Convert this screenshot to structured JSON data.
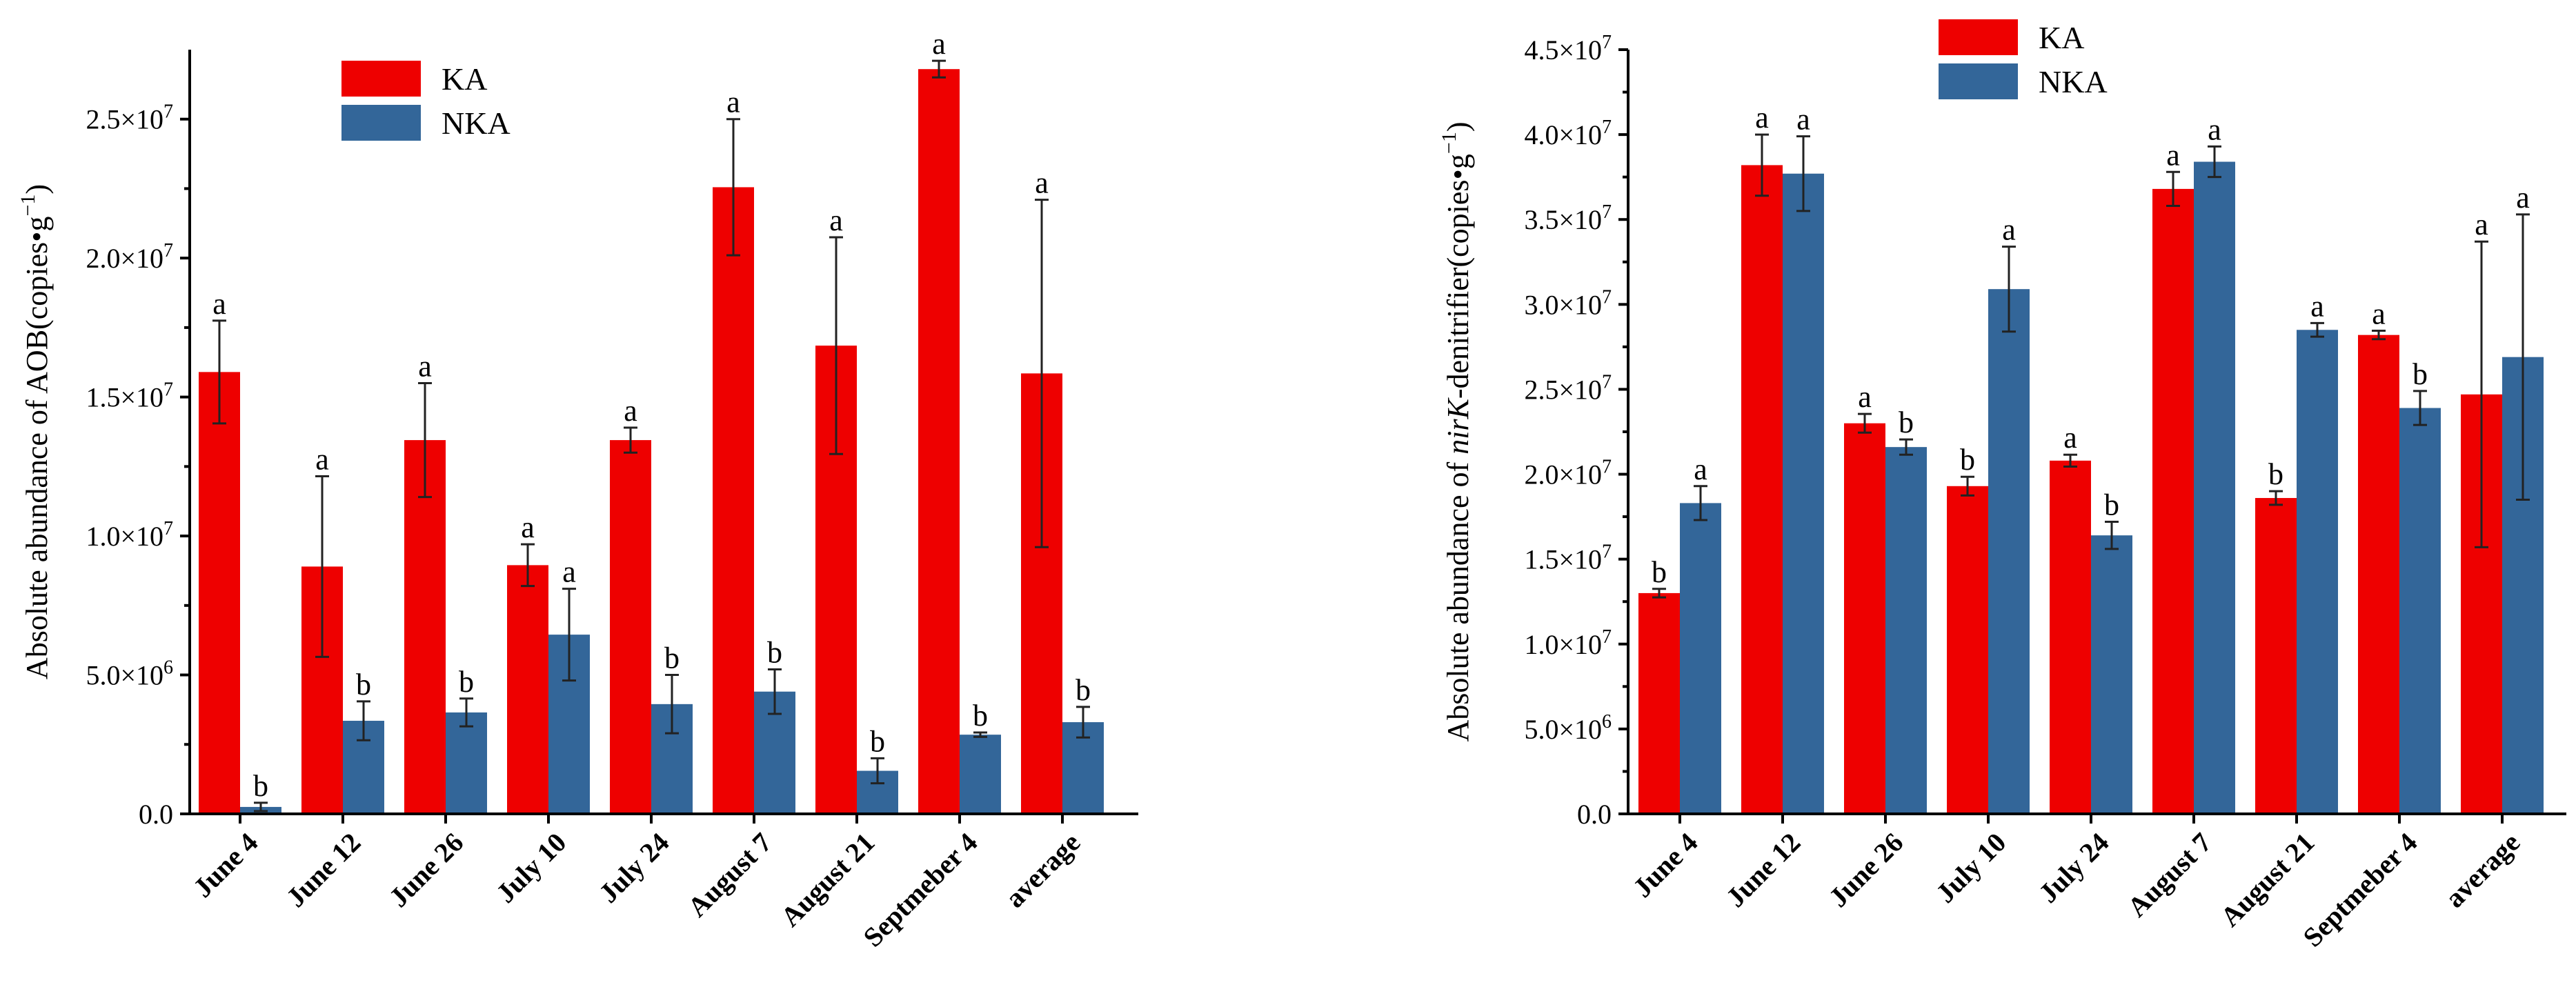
{
  "colors": {
    "KA": "#ee0000",
    "NKA": "#336699"
  },
  "chart_data": [
    {
      "type": "bar",
      "categories": [
        "June 4",
        "June 12",
        "June 26",
        "July 10",
        "July 24",
        "August 7",
        "August 21",
        "Septmeber 4",
        "average"
      ],
      "series": [
        {
          "name": "KA",
          "values": [
            15900000,
            8900000,
            13450000,
            8950000,
            13450000,
            22550000,
            16850000,
            26800000,
            15850000
          ],
          "errors": [
            1850000,
            3250000,
            2050000,
            750000,
            450000,
            2450000,
            3900000,
            300000,
            6250000
          ],
          "labels": [
            "a",
            "a",
            "a",
            "a",
            "a",
            "a",
            "a",
            "a",
            "a"
          ]
        },
        {
          "name": "NKA",
          "values": [
            250000,
            3350000,
            3650000,
            6450000,
            3950000,
            4400000,
            1550000,
            2850000,
            3300000
          ],
          "errors": [
            150000,
            700000,
            500000,
            1650000,
            1050000,
            800000,
            450000,
            80000,
            550000
          ],
          "labels": [
            "b",
            "b",
            "b",
            "a",
            "b",
            "b",
            "b",
            "b",
            "b"
          ]
        }
      ],
      "ylim": [
        0,
        27500000
      ],
      "yticks": [
        0,
        5000000,
        10000000,
        15000000,
        20000000,
        25000000
      ],
      "ytick_labels": [
        {
          "mantissa": "0.0",
          "exponent": ""
        },
        {
          "mantissa": "5.0×10",
          "exponent": "6"
        },
        {
          "mantissa": "1.0×10",
          "exponent": "7"
        },
        {
          "mantissa": "1.5×10",
          "exponent": "7"
        },
        {
          "mantissa": "2.0×10",
          "exponent": "7"
        },
        {
          "mantissa": "2.5×10",
          "exponent": "7"
        }
      ],
      "ylabel": {
        "before": "Absolute abundance of AOB(copies•g",
        "sup": "−1",
        "after": ")",
        "italic": ""
      },
      "xlabel": "",
      "legend": "top-center"
    },
    {
      "type": "bar",
      "categories": [
        "June 4",
        "June 12",
        "June 26",
        "July 10",
        "July 24",
        "August 7",
        "August 21",
        "Septmeber 4",
        "average"
      ],
      "series": [
        {
          "name": "KA",
          "values": [
            13000000,
            38200000,
            23000000,
            19300000,
            20800000,
            36800000,
            18600000,
            28200000,
            24700000
          ],
          "errors": [
            250000,
            1800000,
            550000,
            550000,
            350000,
            1000000,
            400000,
            250000,
            9000000
          ],
          "labels": [
            "b",
            "a",
            "a",
            "b",
            "a",
            "a",
            "b",
            "a",
            "a"
          ]
        },
        {
          "name": "NKA",
          "values": [
            18300000,
            37700000,
            21600000,
            30900000,
            16400000,
            38400000,
            28500000,
            23900000,
            26900000
          ],
          "errors": [
            1000000,
            2200000,
            450000,
            2500000,
            800000,
            900000,
            400000,
            1000000,
            8400000
          ],
          "labels": [
            "a",
            "a",
            "b",
            "a",
            "b",
            "a",
            "a",
            "b",
            "a"
          ]
        }
      ],
      "ylim": [
        0,
        45000000
      ],
      "yticks": [
        0,
        5000000,
        10000000,
        15000000,
        20000000,
        25000000,
        30000000,
        35000000,
        40000000,
        45000000
      ],
      "ytick_labels": [
        {
          "mantissa": "0.0",
          "exponent": ""
        },
        {
          "mantissa": "5.0×10",
          "exponent": "6"
        },
        {
          "mantissa": "1.0×10",
          "exponent": "7"
        },
        {
          "mantissa": "1.5×10",
          "exponent": "7"
        },
        {
          "mantissa": "2.0×10",
          "exponent": "7"
        },
        {
          "mantissa": "2.5×10",
          "exponent": "7"
        },
        {
          "mantissa": "3.0×10",
          "exponent": "7"
        },
        {
          "mantissa": "3.5×10",
          "exponent": "7"
        },
        {
          "mantissa": "4.0×10",
          "exponent": "7"
        },
        {
          "mantissa": "4.5×10",
          "exponent": "7"
        }
      ],
      "ylabel": {
        "before": "Absolute abundance of ",
        "italic": "nirK",
        "after": "-denitrifier(copies•g",
        "sup": "−1",
        "after2": ")"
      },
      "xlabel": "",
      "legend": "top-center"
    }
  ]
}
